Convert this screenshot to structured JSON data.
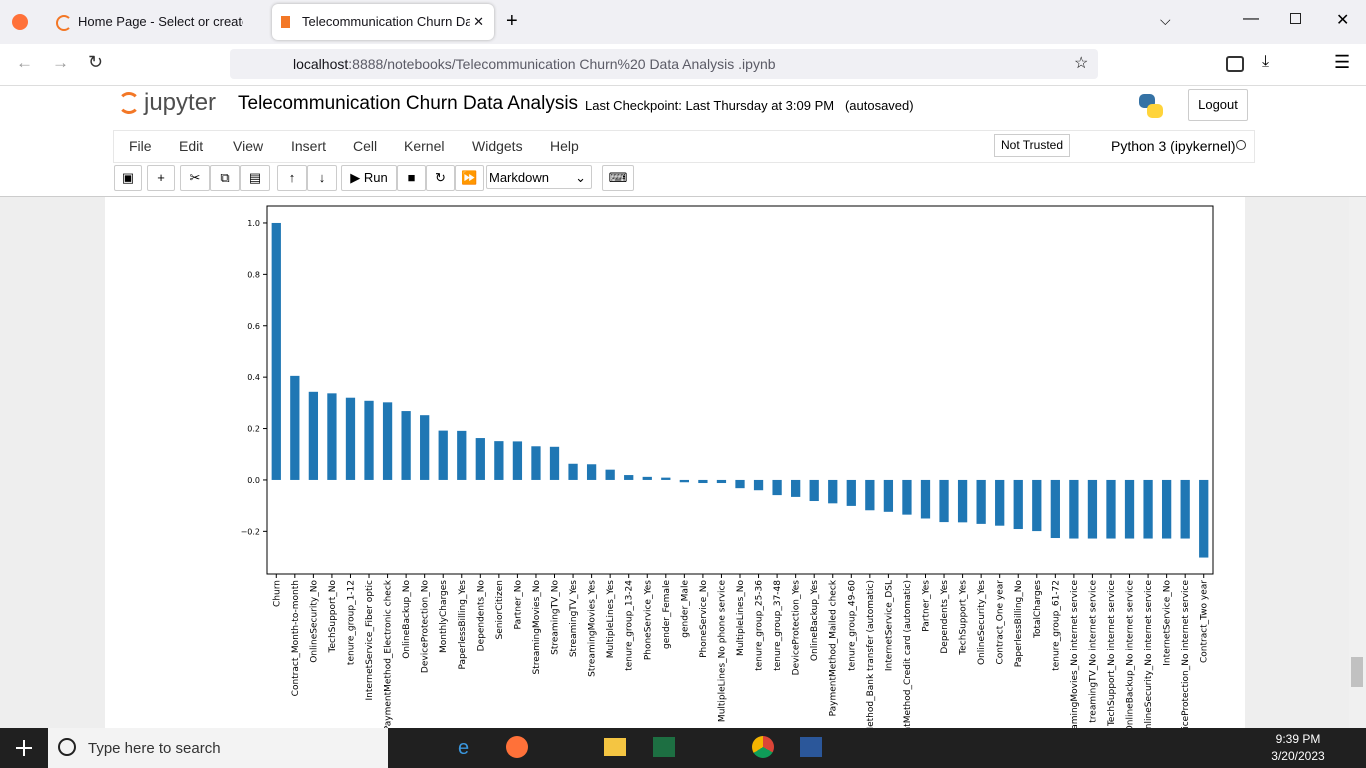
{
  "browser": {
    "tabs": [
      "Home Page - Select or create a",
      "Telecommunication Churn Data"
    ],
    "url_host": "localhost",
    "url_rest": ":8888/notebooks/Telecommunication Churn%20 Data Analysis .ipynb"
  },
  "notebook": {
    "logo": "jupyter",
    "title": "Telecommunication Churn Data Analysis",
    "checkpoint_label": "Last Checkpoint:",
    "checkpoint_time": "Last Thursday at 3:09 PM",
    "autosaved": "(autosaved)",
    "logout": "Logout",
    "menu": [
      "File",
      "Edit",
      "View",
      "Insert",
      "Cell",
      "Kernel",
      "Widgets",
      "Help"
    ],
    "trust": "Not Trusted",
    "kernel": "Python 3 (ipykernel)",
    "run": "Run",
    "cell_type": "Markdown"
  },
  "chart_data": {
    "type": "bar",
    "color": "#1f77b4",
    "categories": [
      "Churn",
      "Contract_Month-to-month",
      "OnlineSecurity_No",
      "TechSupport_No",
      "tenure_group_1-12",
      "InternetService_Fiber optic",
      "PaymentMethod_Electronic check",
      "OnlineBackup_No",
      "DeviceProtection_No",
      "MonthlyCharges",
      "PaperlessBilling_Yes",
      "Dependents_No",
      "SeniorCitizen",
      "Partner_No",
      "StreamingMovies_No",
      "StreamingTV_No",
      "StreamingTV_Yes",
      "StreamingMovies_Yes",
      "MultipleLines_Yes",
      "tenure_group_13-24",
      "PhoneService_Yes",
      "gender_Female",
      "gender_Male",
      "PhoneService_No",
      "MultipleLines_No phone service",
      "MultipleLines_No",
      "tenure_group_25-36",
      "tenure_group_37-48",
      "DeviceProtection_Yes",
      "OnlineBackup_Yes",
      "PaymentMethod_Mailed check",
      "tenure_group_49-60",
      "Method_Bank transfer (automatic)",
      "InternetService_DSL",
      "entMethod_Credit card (automatic)",
      "Partner_Yes",
      "Dependents_Yes",
      "TechSupport_Yes",
      "OnlineSecurity_Yes",
      "Contract_One year",
      "PaperlessBilling_No",
      "TotalCharges",
      "tenure_group_61-72",
      "eamingMovies_No internet service",
      "treamingTV_No internet service",
      "TechSupport_No internet service",
      "OnlineBackup_No internet service",
      "nlineSecurity_No internet service",
      "InternetService_No",
      "viceProtection_No internet service",
      "Contract_Two year"
    ],
    "values": [
      1.0,
      0.405,
      0.343,
      0.337,
      0.32,
      0.308,
      0.302,
      0.268,
      0.252,
      0.192,
      0.191,
      0.163,
      0.151,
      0.15,
      0.131,
      0.129,
      0.063,
      0.061,
      0.04,
      0.019,
      0.012,
      0.009,
      -0.009,
      -0.012,
      -0.012,
      -0.032,
      -0.04,
      -0.059,
      -0.066,
      -0.082,
      -0.091,
      -0.101,
      -0.118,
      -0.124,
      -0.135,
      -0.15,
      -0.164,
      -0.165,
      -0.171,
      -0.178,
      -0.191,
      -0.199,
      -0.226,
      -0.228,
      -0.228,
      -0.228,
      -0.228,
      -0.228,
      -0.228,
      -0.228,
      -0.302
    ],
    "ylim": [
      -0.366,
      1.066
    ],
    "yticks": [
      {
        "value": -0.2,
        "label": "−0.2"
      },
      {
        "value": 0,
        "label": "0.0"
      },
      0.2,
      0.4,
      0.6,
      0.8,
      {
        "value": 1,
        "label": "1.0"
      }
    ]
  },
  "taskbar": {
    "search": "Type here to search",
    "time": "9:39 PM",
    "date": "3/20/2023"
  }
}
